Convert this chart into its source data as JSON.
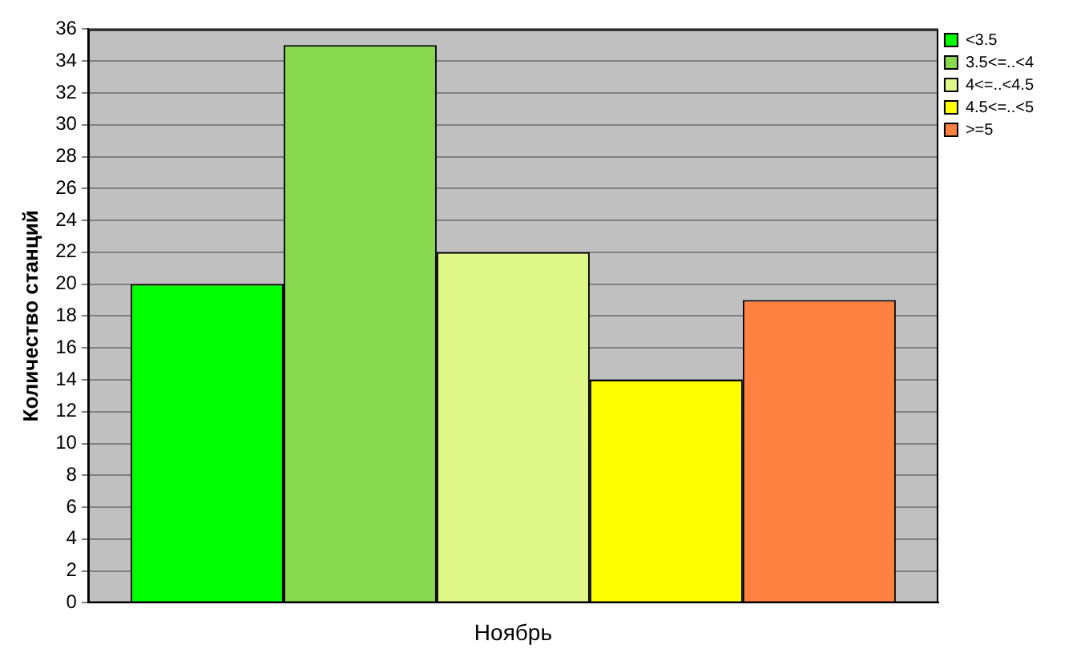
{
  "chart_data": {
    "type": "bar",
    "categories": [
      "Ноябрь"
    ],
    "ylabel": "Количество станций",
    "series": [
      {
        "name": "<3.5",
        "color": "#00ff00",
        "values": [
          20
        ]
      },
      {
        "name": "3.5<=..<4",
        "color": "#88d850",
        "values": [
          35
        ]
      },
      {
        "name": "4<=..<4.5",
        "color": "#e0f888",
        "values": [
          22
        ]
      },
      {
        "name": "4.5<=..<5",
        "color": "#ffff00",
        "values": [
          14
        ]
      },
      {
        "name": ">=5",
        "color": "#ff8040",
        "values": [
          19
        ]
      }
    ],
    "ylim": [
      0,
      36
    ],
    "yticks": [
      0,
      2,
      4,
      6,
      8,
      10,
      12,
      14,
      16,
      18,
      20,
      22,
      24,
      26,
      28,
      30,
      32,
      34,
      36
    ],
    "grid": "y",
    "legend": "top right"
  }
}
